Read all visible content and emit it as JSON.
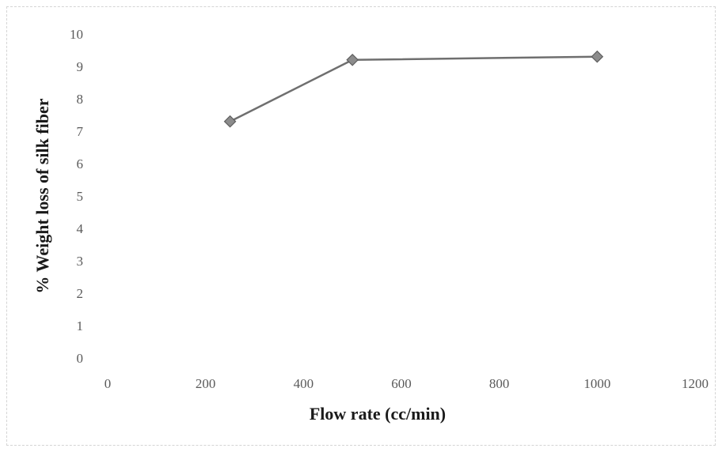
{
  "chart_data": {
    "type": "scatter",
    "title": "",
    "xlabel": "Flow rate (cc/min)",
    "ylabel": "% Weight loss of silk fiber",
    "xlim": [
      0,
      1200
    ],
    "ylim": [
      0,
      10
    ],
    "x_ticks": [
      "0",
      "200",
      "400",
      "600",
      "800",
      "1000",
      "1200"
    ],
    "y_ticks": [
      "0",
      "1",
      "2",
      "3",
      "4",
      "5",
      "6",
      "7",
      "8",
      "9",
      "10"
    ],
    "series": [
      {
        "x": [
          250,
          500,
          1000
        ],
        "y": [
          7.3,
          9.2,
          9.3
        ],
        "line": true,
        "marker": "diamond",
        "color": "#7f7f7f"
      }
    ],
    "grid": false,
    "legend": "none"
  }
}
